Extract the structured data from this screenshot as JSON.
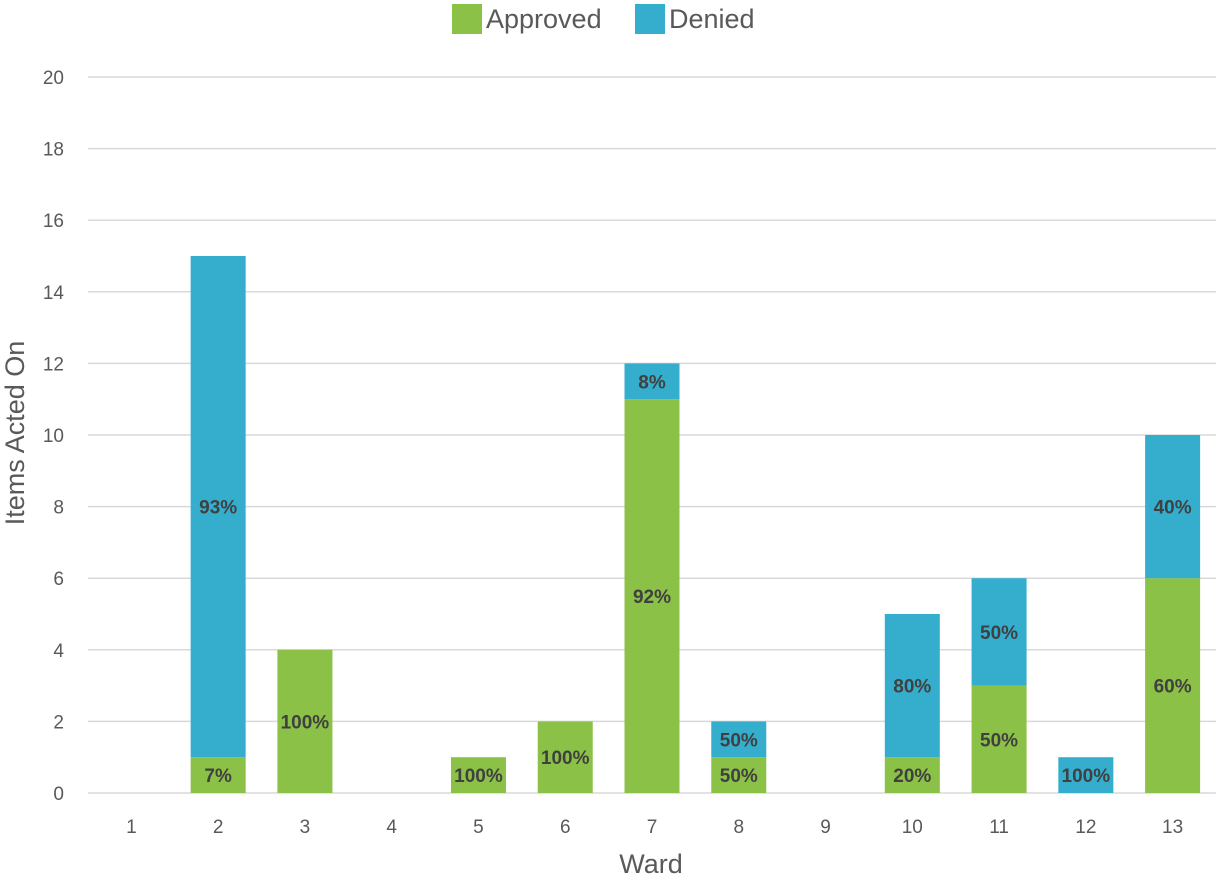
{
  "chart_data": {
    "type": "bar",
    "stacked": true,
    "categories": [
      "1",
      "2",
      "3",
      "4",
      "5",
      "6",
      "7",
      "8",
      "9",
      "10",
      "11",
      "12",
      "13"
    ],
    "series": [
      {
        "name": "Approved",
        "color": "#8BC146",
        "values": [
          0,
          1,
          4,
          0,
          1,
          2,
          11,
          1,
          0,
          1,
          3,
          0,
          6
        ],
        "labels": [
          "",
          "7%",
          "100%",
          "",
          "100%",
          "100%",
          "92%",
          "50%",
          "",
          "20%",
          "50%",
          "",
          "60%"
        ]
      },
      {
        "name": "Denied",
        "color": "#35AECE",
        "values": [
          0,
          14,
          0,
          0,
          0,
          0,
          1,
          1,
          0,
          4,
          3,
          1,
          4
        ],
        "labels": [
          "",
          "93%",
          "",
          "",
          "",
          "",
          "8%",
          "50%",
          "",
          "80%",
          "50%",
          "100%",
          "40%"
        ]
      }
    ],
    "title": "",
    "xlabel": "Ward",
    "ylabel": "Items Acted On",
    "ylim": [
      0,
      20
    ],
    "yticks": [
      "0",
      "2",
      "4",
      "6",
      "8",
      "10",
      "12",
      "14",
      "16",
      "18",
      "20"
    ],
    "grid": true,
    "legend_position": "top"
  }
}
